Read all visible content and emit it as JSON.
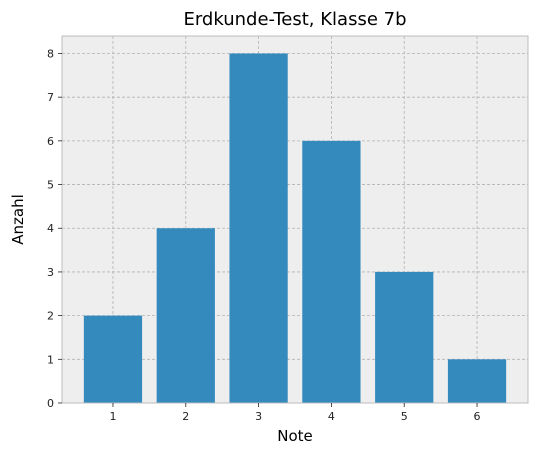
{
  "chart_data": {
    "type": "bar",
    "title": "Erdkunde-Test, Klasse 7b",
    "xlabel": "Note",
    "ylabel": "Anzahl",
    "categories": [
      "1",
      "2",
      "3",
      "4",
      "5",
      "6"
    ],
    "values": [
      2,
      4,
      8,
      6,
      3,
      1
    ],
    "ylim": [
      0,
      8.4
    ],
    "yticks": [
      0,
      1,
      2,
      3,
      4,
      5,
      6,
      7,
      8
    ],
    "grid": true,
    "legend": "none",
    "colors": {
      "bar": "#348abd",
      "plot_background": "#eeeeee",
      "grid": "#b2b2b2",
      "frame": "#bcbcbc",
      "text": "#000000",
      "tick_label": "#222222"
    }
  }
}
